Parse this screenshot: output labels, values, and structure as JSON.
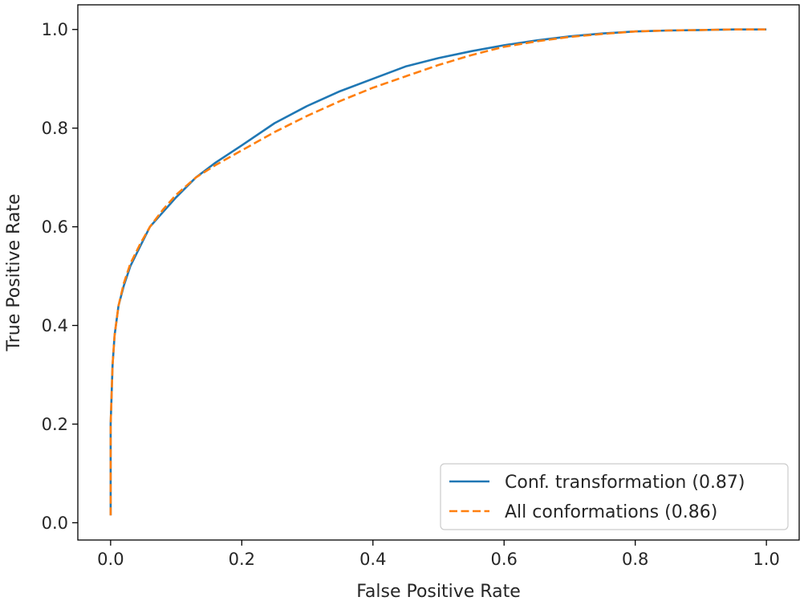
{
  "chart_data": {
    "type": "line",
    "xlabel": "False Positive Rate",
    "ylabel": "True Positive Rate",
    "xlim": [
      -0.05,
      1.05
    ],
    "ylim": [
      -0.035,
      1.05
    ],
    "xticks": [
      0.0,
      0.2,
      0.4,
      0.6,
      0.8,
      1.0
    ],
    "yticks": [
      0.0,
      0.2,
      0.4,
      0.6,
      0.8,
      1.0
    ],
    "xtick_labels": [
      "0.0",
      "0.2",
      "0.4",
      "0.6",
      "0.8",
      "1.0"
    ],
    "ytick_labels": [
      "0.0",
      "0.2",
      "0.4",
      "0.6",
      "0.8",
      "1.0"
    ],
    "grid": false,
    "legend_position": "lower-right",
    "series": [
      {
        "name": "Conf. transformation (0.87)",
        "color": "#1f77b4",
        "style": "solid",
        "x": [
          0.0,
          0.0,
          0.003,
          0.006,
          0.012,
          0.02,
          0.03,
          0.045,
          0.06,
          0.08,
          0.1,
          0.13,
          0.16,
          0.2,
          0.25,
          0.3,
          0.35,
          0.4,
          0.45,
          0.5,
          0.55,
          0.6,
          0.65,
          0.7,
          0.75,
          0.8,
          0.85,
          0.9,
          0.95,
          1.0
        ],
        "y": [
          0.015,
          0.2,
          0.32,
          0.38,
          0.44,
          0.48,
          0.52,
          0.56,
          0.6,
          0.63,
          0.66,
          0.7,
          0.73,
          0.765,
          0.81,
          0.845,
          0.875,
          0.9,
          0.925,
          0.942,
          0.956,
          0.968,
          0.978,
          0.986,
          0.992,
          0.996,
          0.998,
          0.999,
          1.0,
          1.0
        ]
      },
      {
        "name": "All conformations (0.86)",
        "color": "#ff7f0e",
        "style": "dashed",
        "x": [
          0.0,
          0.0,
          0.003,
          0.006,
          0.012,
          0.02,
          0.03,
          0.045,
          0.06,
          0.08,
          0.1,
          0.13,
          0.16,
          0.2,
          0.25,
          0.3,
          0.35,
          0.4,
          0.45,
          0.5,
          0.55,
          0.6,
          0.65,
          0.7,
          0.75,
          0.8,
          0.85,
          0.9,
          0.95,
          1.0
        ],
        "y": [
          0.015,
          0.2,
          0.32,
          0.38,
          0.44,
          0.485,
          0.525,
          0.565,
          0.6,
          0.635,
          0.665,
          0.7,
          0.725,
          0.755,
          0.792,
          0.825,
          0.855,
          0.882,
          0.905,
          0.928,
          0.948,
          0.965,
          0.976,
          0.985,
          0.991,
          0.996,
          0.998,
          0.999,
          1.0,
          1.0
        ]
      }
    ]
  }
}
